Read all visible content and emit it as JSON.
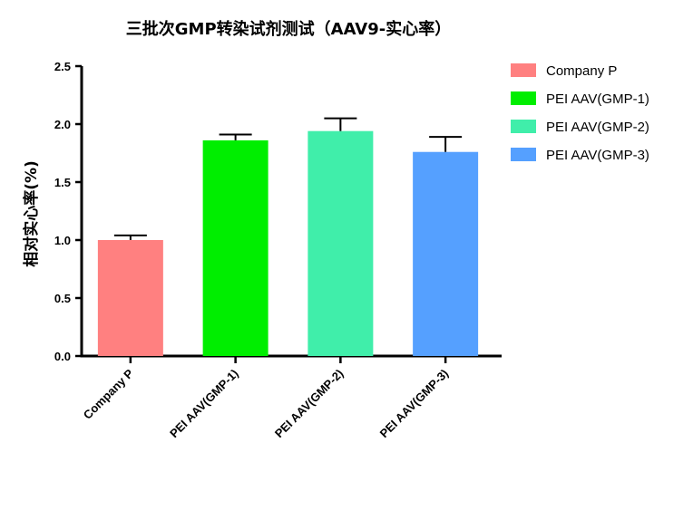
{
  "chart_data": {
    "type": "bar",
    "title": "三批次GMP转染试剂测试（AAV9-实心率）",
    "ylabel": "相对实心率(%)",
    "xlabel": "",
    "ylim": [
      0,
      2.5
    ],
    "yticks": [
      "0.0",
      "0.5",
      "1.0",
      "1.5",
      "2.0",
      "2.5"
    ],
    "categories": [
      "Company P",
      "PEI AAV(GMP-1)",
      "PEI AAV(GMP-2)",
      "PEI AAV(GMP-3)"
    ],
    "values": [
      1.0,
      1.86,
      1.94,
      1.76
    ],
    "errors": [
      0.04,
      0.05,
      0.11,
      0.13
    ],
    "colors": [
      "#ff8080",
      "#00ee00",
      "#40eeaa",
      "#55a0ff"
    ],
    "legend": {
      "position": "top-right",
      "entries": [
        "Company P",
        "PEI AAV(GMP-1)",
        "PEI AAV(GMP-2)",
        "PEI AAV(GMP-3)"
      ]
    },
    "grid": false
  }
}
